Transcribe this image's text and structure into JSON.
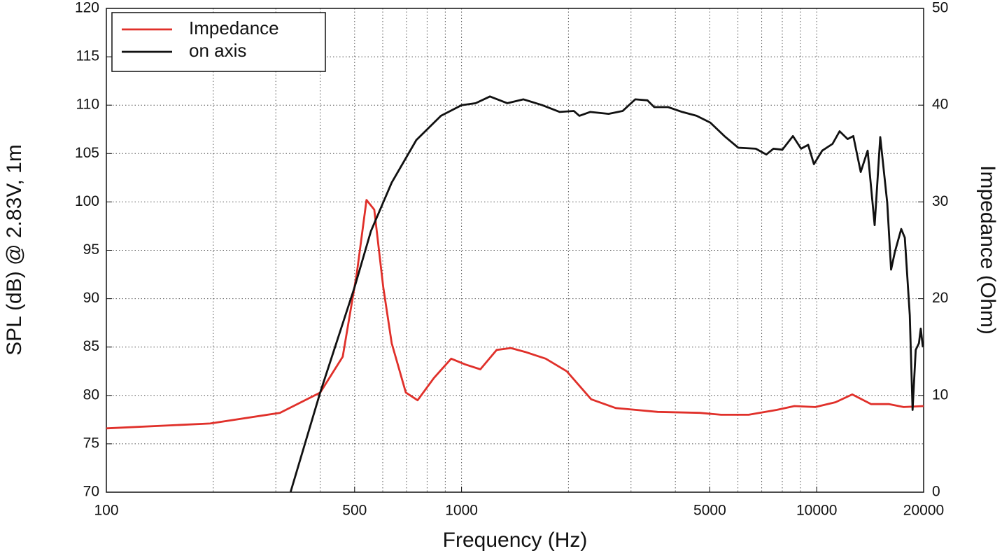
{
  "chart_data": {
    "type": "line",
    "xlabel": "Frequency (Hz)",
    "ylabel": "SPL (dB) @ 2.83V, 1m",
    "y2label": "Impedance (Ohm)",
    "xscale": "log",
    "xlim": [
      100,
      20000
    ],
    "xticks": [
      100,
      500,
      1000,
      5000,
      10000,
      20000
    ],
    "xminor_ticks": [
      200,
      300,
      400,
      600,
      700,
      800,
      900,
      2000,
      3000,
      4000,
      6000,
      7000,
      8000,
      9000
    ],
    "ylim": [
      70,
      120
    ],
    "yticks": [
      70,
      75,
      80,
      85,
      90,
      95,
      100,
      105,
      110,
      115,
      120
    ],
    "y2lim": [
      0,
      50
    ],
    "y2ticks": [
      0,
      10,
      20,
      30,
      40,
      50
    ],
    "grid": true,
    "legend": "upper left",
    "series": [
      {
        "name": "Impedance",
        "color": "#e0302a",
        "axis": "y2",
        "x": [
          100,
          196,
          308,
          400,
          463,
          507,
          540,
          568,
          602,
          636,
          697,
          752,
          836,
          935,
          1025,
          1130,
          1256,
          1376,
          1509,
          1726,
          1978,
          2318,
          2716,
          3565,
          4689,
          5377,
          6434,
          7710,
          8652,
          9910,
          11300,
          12590,
          14230,
          15990,
          17570,
          20000
        ],
        "values": [
          6.6,
          7.1,
          8.2,
          10.3,
          14.0,
          22.6,
          30.2,
          29.2,
          21.2,
          15.4,
          10.3,
          9.5,
          11.8,
          13.8,
          13.2,
          12.7,
          14.7,
          14.9,
          14.5,
          13.8,
          12.5,
          9.6,
          8.7,
          8.3,
          8.2,
          8.0,
          8.0,
          8.5,
          8.9,
          8.8,
          9.3,
          10.1,
          9.1,
          9.1,
          8.8,
          8.9
        ]
      },
      {
        "name": "on axis",
        "color": "#111111",
        "x": [
          330,
          400,
          500,
          556,
          636,
          746,
          875,
          1000,
          1096,
          1202,
          1346,
          1494,
          1687,
          1891,
          2071,
          2147,
          2302,
          2595,
          2843,
          3085,
          3336,
          3488,
          3818,
          4182,
          4590,
          5016,
          5497,
          6015,
          6736,
          7215,
          7553,
          8005,
          8570,
          9040,
          9460,
          9820,
          10360,
          11080,
          11600,
          12220,
          12680,
          13300,
          13910,
          14560,
          15100,
          15800,
          16200,
          16590,
          17300,
          17700,
          18280,
          18620,
          19000,
          19400,
          19630,
          19900
        ],
        "values": [
          70,
          80.3,
          91.2,
          97,
          102,
          106.4,
          108.9,
          110,
          110.2,
          110.9,
          110.2,
          110.6,
          110,
          109.3,
          109.4,
          108.9,
          109.3,
          109.1,
          109.4,
          110.6,
          110.5,
          109.8,
          109.8,
          109.3,
          108.9,
          108.2,
          106.8,
          105.6,
          105.5,
          104.9,
          105.5,
          105.4,
          106.8,
          105.5,
          105.9,
          103.9,
          105.3,
          106,
          107.3,
          106.5,
          106.8,
          103.1,
          105.3,
          97.6,
          106.7,
          99.9,
          93,
          94.8,
          97.2,
          96.3,
          88.3,
          78.5,
          84.7,
          85.4,
          86.9,
          85
        ]
      }
    ]
  }
}
